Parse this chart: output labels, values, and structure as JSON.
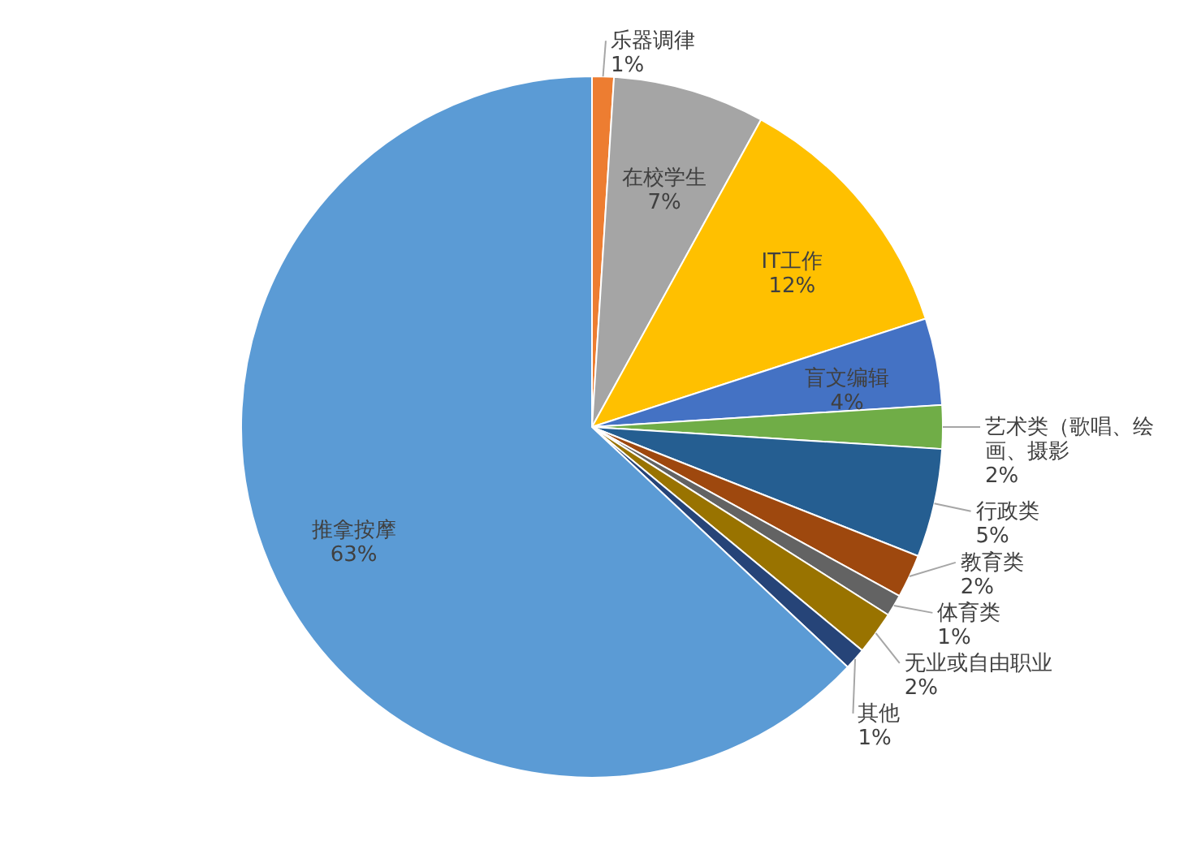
{
  "chart_data": {
    "type": "pie",
    "categories": [
      "乐器调律",
      "在校学生",
      "IT工作",
      "盲文编辑",
      "艺术类（歌唱、绘画、摄影",
      "行政类",
      "教育类",
      "体育类",
      "无业或自由职业",
      "其他",
      "推拿按摩"
    ],
    "values": [
      1,
      7,
      12,
      4,
      2,
      5,
      2,
      1,
      2,
      1,
      63
    ],
    "value_labels": [
      "1%",
      "7%",
      "12%",
      "4%",
      "2%",
      "5%",
      "2%",
      "1%",
      "2%",
      "1%",
      "63%"
    ],
    "colors": [
      "#ed7d31",
      "#a5a5a5",
      "#ffc000",
      "#4472c4",
      "#70ad47",
      "#255e91",
      "#9e480e",
      "#636363",
      "#997300",
      "#264478",
      "#5b9bd5"
    ]
  }
}
